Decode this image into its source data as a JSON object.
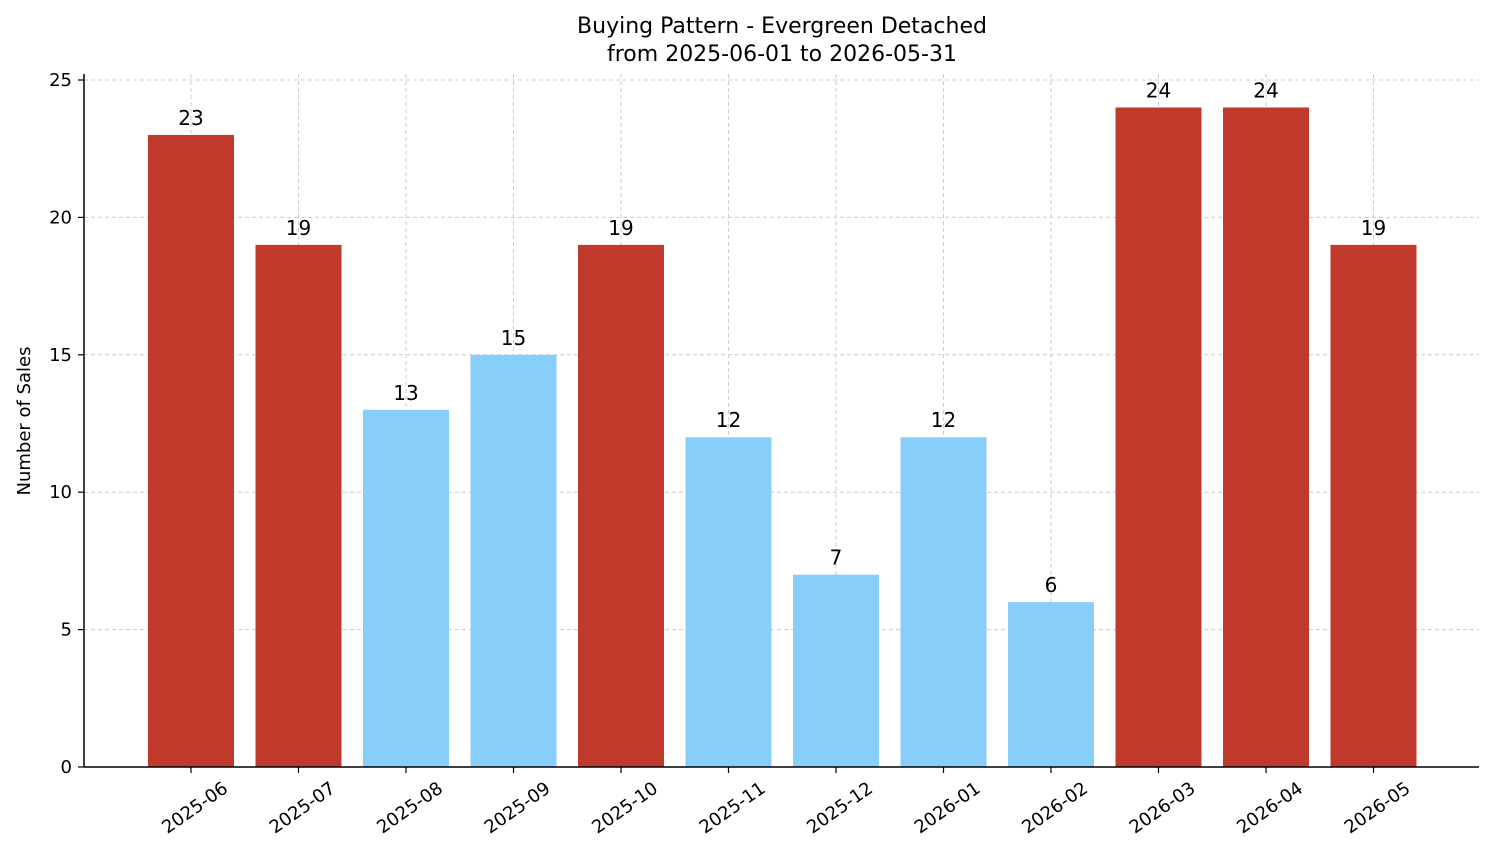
{
  "chart_data": {
    "type": "bar",
    "title": "Buying Pattern - Evergreen Detached",
    "subtitle": "from 2025-06-01 to 2026-05-31",
    "xlabel": "",
    "ylabel": "Number of Sales",
    "ylim": [
      0,
      25
    ],
    "yticks": [
      0,
      5,
      10,
      15,
      20,
      25
    ],
    "grid": true,
    "categories": [
      "2025-06",
      "2025-07",
      "2025-08",
      "2025-09",
      "2025-10",
      "2025-11",
      "2025-12",
      "2026-01",
      "2026-02",
      "2026-03",
      "2026-04",
      "2026-05"
    ],
    "values": [
      23,
      19,
      13,
      15,
      19,
      12,
      7,
      12,
      6,
      24,
      24,
      19
    ],
    "bar_colors": [
      "#c0392b",
      "#c0392b",
      "#87cefa",
      "#87cefa",
      "#c0392b",
      "#87cefa",
      "#87cefa",
      "#87cefa",
      "#87cefa",
      "#c0392b",
      "#c0392b",
      "#c0392b"
    ]
  }
}
